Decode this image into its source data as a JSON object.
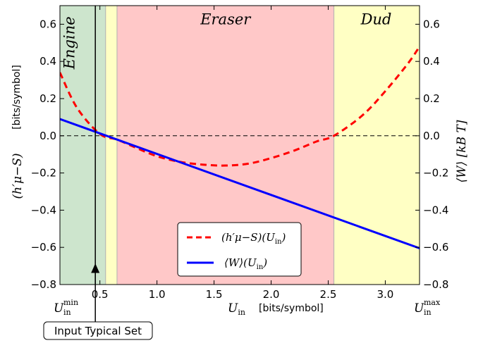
{
  "chart_data": {
    "type": "line",
    "xlim": [
      0.15,
      3.3
    ],
    "ylim": [
      -0.8,
      0.7
    ],
    "x_ticks": [
      0.5,
      1.0,
      1.5,
      2.0,
      2.5,
      3.0
    ],
    "x_tick_labels": [
      "0.5",
      "1.0",
      "1.5",
      "2.0",
      "2.5",
      "3.0"
    ],
    "y_ticks": [
      -0.8,
      -0.6,
      -0.4,
      -0.2,
      0.0,
      0.2,
      0.4,
      0.6
    ],
    "y_tick_labels": [
      "−0.8",
      "−0.6",
      "−0.4",
      "−0.2",
      "0.0",
      "0.2",
      "0.4",
      "0.6"
    ],
    "xlabel": {
      "math": "U",
      "sub": "in",
      "unit": "[bits/symbol]"
    },
    "xmin_label": {
      "math": "U",
      "sub": "in",
      "sup": "min"
    },
    "xmax_label": {
      "math": "U",
      "sub": "in",
      "sup": "max"
    },
    "ylabel_left": {
      "text": "(h′μ−S)",
      "unit": "[bits/symbol]"
    },
    "ylabel_right": {
      "text": "⟨W⟩ [kB T]"
    },
    "zero_line": {
      "y": 0.0,
      "style": "dashed",
      "color": "#000000"
    },
    "regions": [
      {
        "name": "Engine",
        "x0": 0.15,
        "x1": 0.55,
        "color": "#cde5cd"
      },
      {
        "name": "",
        "x0": 0.55,
        "x1": 0.65,
        "color": "#ffffc4"
      },
      {
        "name": "Eraser",
        "x0": 0.65,
        "x1": 2.55,
        "color": "#ffc8c8"
      },
      {
        "name": "Dud",
        "x0": 2.55,
        "x1": 3.3,
        "color": "#ffffc4"
      }
    ],
    "region_labels": [
      "Engine",
      "Eraser",
      "Dud"
    ],
    "typical_set": {
      "x": 0.46,
      "label": "Input Typical Set"
    },
    "series": [
      {
        "name": "(h′μ−S)(Uin)",
        "legend": {
          "math": "(h′μ−S)(U",
          "sub": "in",
          "close": ")"
        },
        "color": "#ff0000",
        "style": "dashed",
        "x": [
          0.15,
          0.3,
          0.5,
          0.65,
          0.8,
          1.0,
          1.2,
          1.4,
          1.6,
          1.8,
          2.0,
          2.2,
          2.4,
          2.55,
          2.8,
          3.0,
          3.2,
          3.3
        ],
        "y": [
          0.34,
          0.15,
          0.01,
          -0.02,
          -0.06,
          -0.11,
          -0.14,
          -0.155,
          -0.16,
          -0.15,
          -0.12,
          -0.08,
          -0.03,
          0.0,
          0.11,
          0.24,
          0.39,
          0.48
        ]
      },
      {
        "name": "⟨W⟩(Uin)",
        "legend": {
          "math": "⟨W⟩(U",
          "sub": "in",
          "close": ")"
        },
        "color": "#0000ff",
        "style": "solid",
        "x": [
          0.15,
          3.3
        ],
        "y": [
          0.09,
          -0.605
        ]
      }
    ],
    "legend_position": "lower-center",
    "grid": false
  }
}
